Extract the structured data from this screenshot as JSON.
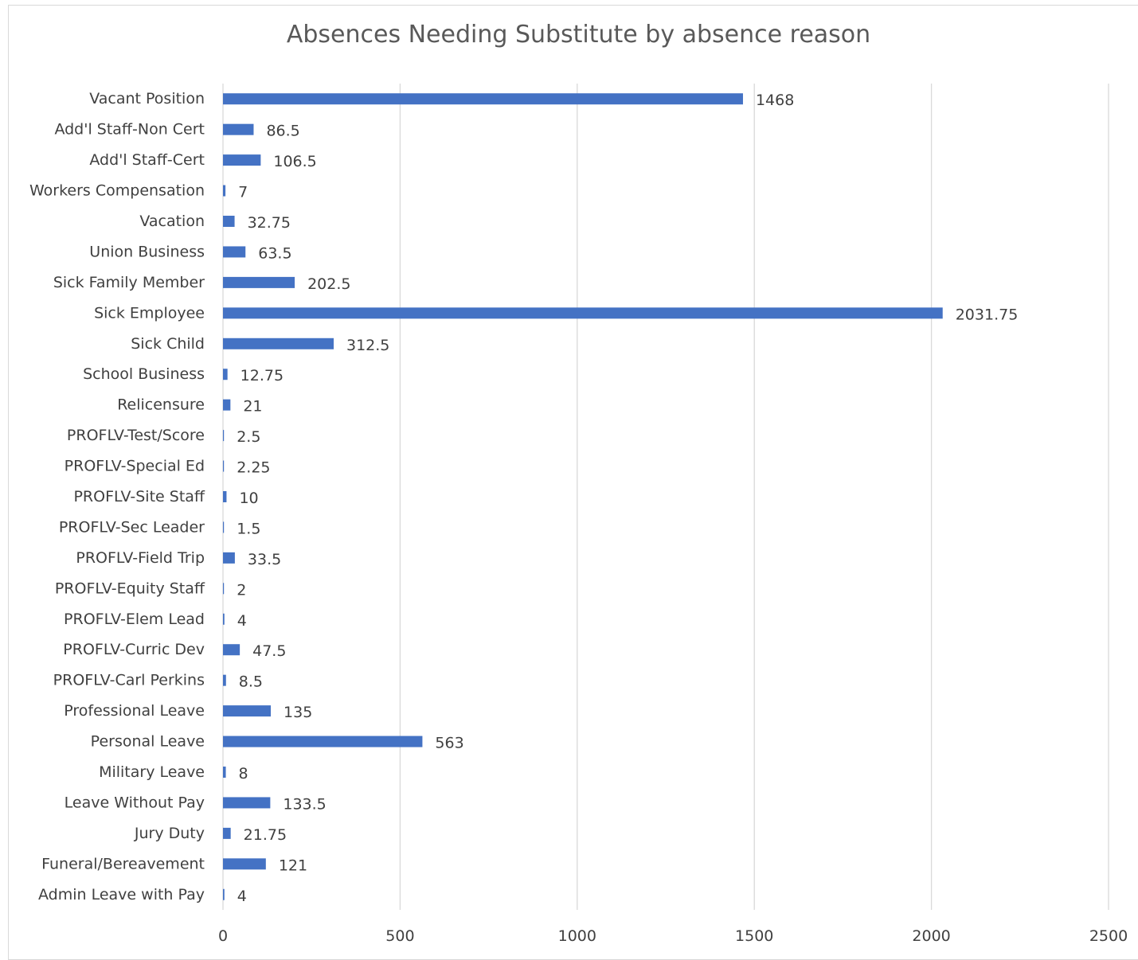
{
  "chart_data": {
    "type": "bar",
    "orientation": "horizontal",
    "title": "Absences Needing Substitute by absence reason",
    "xlabel": "",
    "ylabel": "",
    "xlim": [
      0,
      2500
    ],
    "x_ticks": [
      0,
      500,
      1000,
      1500,
      2000,
      2500
    ],
    "grid": true,
    "legend": "none",
    "bar_color": "#4472c4",
    "categories": [
      "Vacant Position",
      "Add'l Staff-Non Cert",
      "Add'l Staff-Cert",
      "Workers Compensation",
      "Vacation",
      "Union Business",
      "Sick Family Member",
      "Sick Employee",
      "Sick Child",
      "School Business",
      "Relicensure",
      "PROFLV-Test/Score",
      "PROFLV-Special Ed",
      "PROFLV-Site Staff",
      "PROFLV-Sec Leader",
      "PROFLV-Field Trip",
      "PROFLV-Equity Staff",
      "PROFLV-Elem Lead",
      "PROFLV-Curric Dev",
      "PROFLV-Carl Perkins",
      "Professional Leave",
      "Personal Leave",
      "Military Leave",
      "Leave Without Pay",
      "Jury Duty",
      "Funeral/Bereavement",
      "Admin Leave with Pay"
    ],
    "values": [
      1468,
      86.5,
      106.5,
      7,
      32.75,
      63.5,
      202.5,
      2031.75,
      312.5,
      12.75,
      21,
      2.5,
      2.25,
      10,
      1.5,
      33.5,
      2,
      4,
      47.5,
      8.5,
      135,
      563,
      8,
      133.5,
      21.75,
      121,
      4
    ]
  }
}
